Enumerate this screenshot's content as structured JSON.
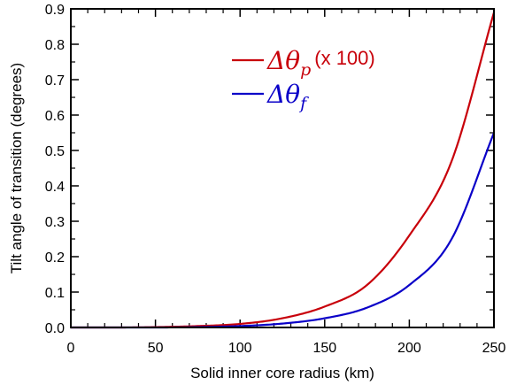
{
  "colors": {
    "series_p": "#c8000a",
    "series_f": "#0a00c8",
    "axis": "#000000",
    "background": "#ffffff"
  },
  "chart_data": {
    "type": "line",
    "title": "",
    "xlabel": "Solid inner core radius (km)",
    "ylabel": "Tilt angle of transition (degrees)",
    "xlim": [
      0,
      250
    ],
    "ylim": [
      0,
      0.9
    ],
    "x_ticks": [
      0,
      50,
      100,
      150,
      200,
      250
    ],
    "x_tick_labels": [
      "0",
      "50",
      "100",
      "150",
      "200",
      "250"
    ],
    "y_ticks": [
      0,
      0.1,
      0.2,
      0.3,
      0.4,
      0.5,
      0.6,
      0.7,
      0.8,
      0.9
    ],
    "y_tick_labels": [
      "0.0",
      "0.1",
      "0.2",
      "0.3",
      "0.4",
      "0.5",
      "0.6",
      "0.7",
      "0.8",
      "0.9"
    ],
    "grid": false,
    "legend_position": "upper-center",
    "x": [
      0,
      25,
      50,
      75,
      100,
      125,
      150,
      175,
      200,
      225,
      250
    ],
    "series": [
      {
        "name": "Δθp (x 100)",
        "name_symbol": "Δθ",
        "name_subscript": "p",
        "name_suffix": "(x 100)",
        "color": "#c8000a",
        "values": [
          0,
          0,
          0.001,
          0.004,
          0.01,
          0.026,
          0.059,
          0.12,
          0.26,
          0.47,
          0.89
        ]
      },
      {
        "name": "Δθf",
        "name_symbol": "Δθ",
        "name_subscript": "f",
        "name_suffix": "",
        "color": "#0a00c8",
        "values": [
          0,
          0,
          0,
          0.001,
          0.004,
          0.011,
          0.026,
          0.056,
          0.12,
          0.25,
          0.55
        ]
      }
    ]
  }
}
